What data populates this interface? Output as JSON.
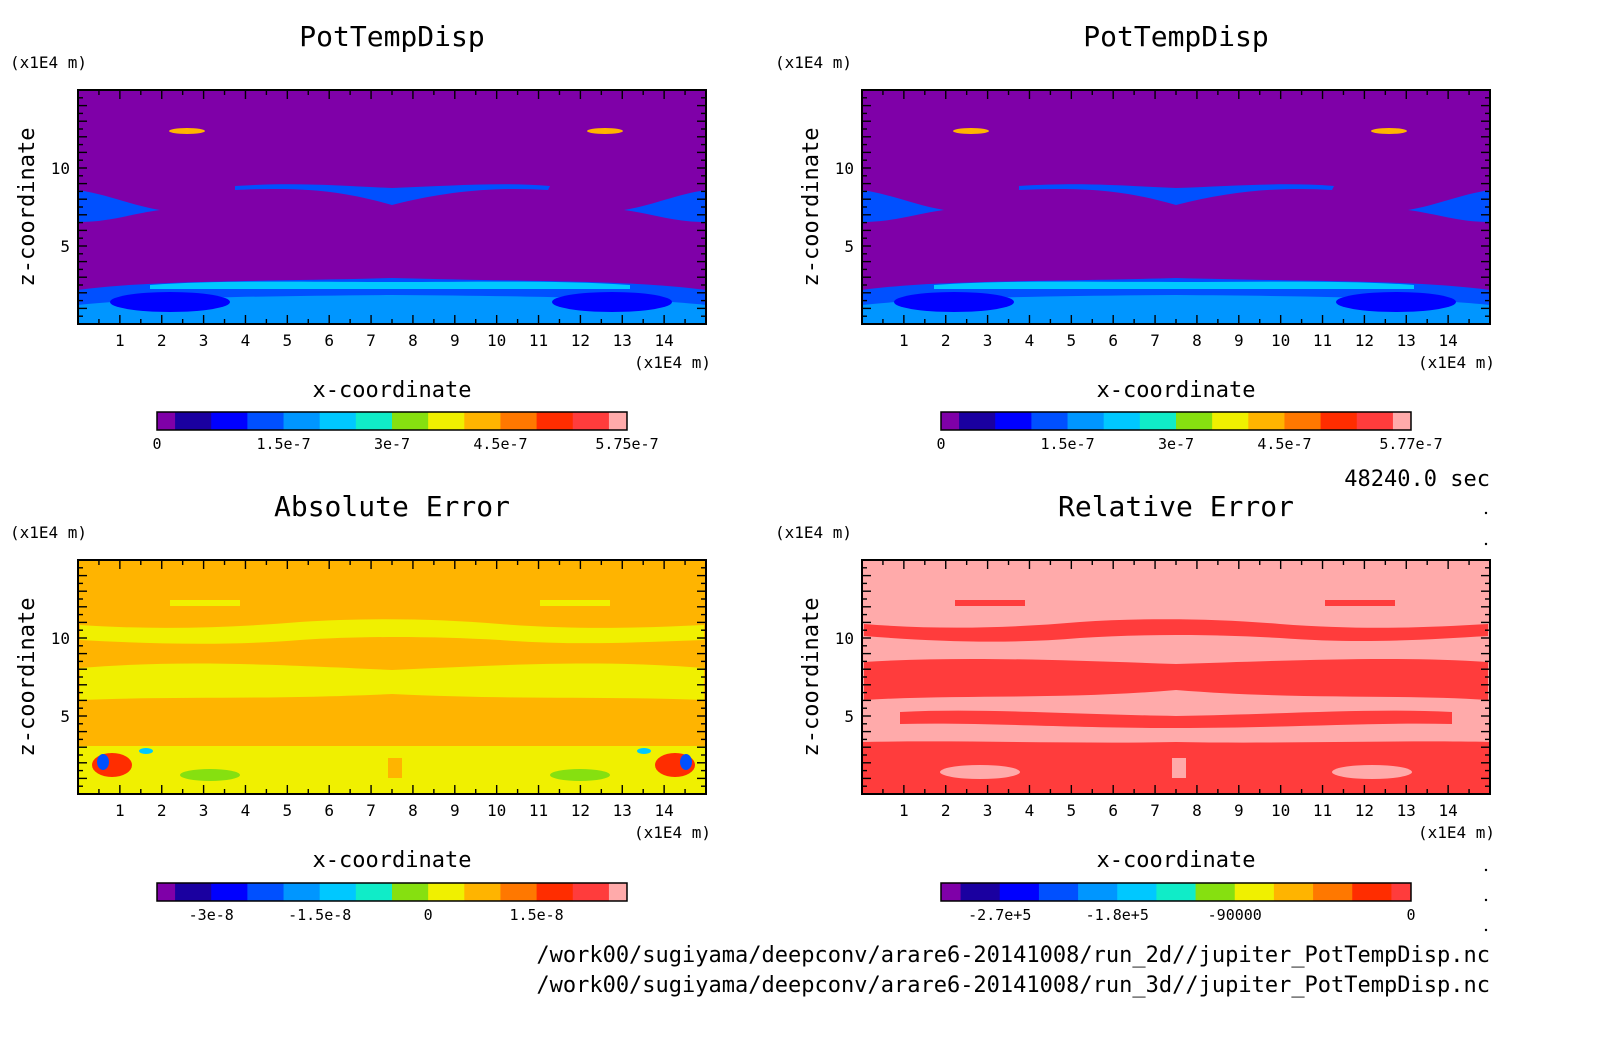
{
  "time_label": "48240.0 sec",
  "files": [
    "/work00/sugiyama/deepconv/arare6-20141008/run_2d//jupiter_PotTempDisp.nc",
    "/work00/sugiyama/deepconv/arare6-20141008/run_3d//jupiter_PotTempDisp.nc"
  ],
  "colors": {
    "palette13": [
      "#7f00a8",
      "#1a00a0",
      "#0000ff",
      "#0050ff",
      "#0096ff",
      "#00c8ff",
      "#10ecc8",
      "#86e010",
      "#f0f000",
      "#ffb400",
      "#ff7800",
      "#ff2d00",
      "#ff3c3c",
      "#ffaaaa"
    ],
    "relpalette": [
      "#7f00a8",
      "#1a00a0",
      "#0000ff",
      "#0050ff",
      "#0096ff",
      "#00c8ff",
      "#10ecc8",
      "#86e010",
      "#f0f000",
      "#ffb400",
      "#ff7800",
      "#ff2d00",
      "#ff3c3c"
    ]
  },
  "chart_data": [
    {
      "type": "heatmap",
      "title": "PotTempDisp",
      "xlabel": "x-coordinate",
      "ylabel": "z-coordinate",
      "x_unit": "(x1E4 m)",
      "y_unit": "(x1E4 m)",
      "xticks": [
        1,
        2,
        3,
        4,
        5,
        6,
        7,
        8,
        9,
        10,
        11,
        12,
        13,
        14
      ],
      "yticks": [
        5,
        10
      ],
      "xlim": [
        0,
        15
      ],
      "ylim": [
        0,
        15
      ],
      "colorbar_labels": [
        "0",
        "1.5e-7",
        "3e-7",
        "4.5e-7",
        "5.75e-7"
      ],
      "colorbar_range": [
        0,
        5.75e-07
      ],
      "dominant_level": "0 (purple)",
      "source_run": "run_2d"
    },
    {
      "type": "heatmap",
      "title": "PotTempDisp",
      "xlabel": "x-coordinate",
      "ylabel": "z-coordinate",
      "x_unit": "(x1E4 m)",
      "y_unit": "(x1E4 m)",
      "xticks": [
        1,
        2,
        3,
        4,
        5,
        6,
        7,
        8,
        9,
        10,
        11,
        12,
        13,
        14
      ],
      "yticks": [
        5,
        10
      ],
      "xlim": [
        0,
        15
      ],
      "ylim": [
        0,
        15
      ],
      "colorbar_labels": [
        "0",
        "1.5e-7",
        "3e-7",
        "4.5e-7",
        "5.77e-7"
      ],
      "colorbar_range": [
        0,
        5.77e-07
      ],
      "dominant_level": "0 (purple)",
      "source_run": "run_3d"
    },
    {
      "type": "heatmap",
      "title": "Absolute Error",
      "xlabel": "x-coordinate",
      "ylabel": "z-coordinate",
      "x_unit": "(x1E4 m)",
      "y_unit": "(x1E4 m)",
      "xticks": [
        1,
        2,
        3,
        4,
        5,
        6,
        7,
        8,
        9,
        10,
        11,
        12,
        13,
        14
      ],
      "yticks": [
        5,
        10
      ],
      "xlim": [
        0,
        15
      ],
      "ylim": [
        0,
        15
      ],
      "colorbar_labels": [
        "-3e-8",
        "-1.5e-8",
        "0",
        "1.5e-8"
      ],
      "dominant_level": "orange (slightly positive)"
    },
    {
      "type": "heatmap",
      "title": "Relative Error",
      "xlabel": "x-coordinate",
      "ylabel": "z-coordinate",
      "x_unit": "(x1E4 m)",
      "y_unit": "(x1E4 m)",
      "xticks": [
        1,
        2,
        3,
        4,
        5,
        6,
        7,
        8,
        9,
        10,
        11,
        12,
        13,
        14
      ],
      "yticks": [
        5,
        10
      ],
      "xlim": [
        0,
        15
      ],
      "ylim": [
        0,
        15
      ],
      "colorbar_labels": [
        "-2.7e+5",
        "-1.8e+5",
        "-90000",
        "0"
      ],
      "dominant_level": "pink (0 and above)"
    }
  ]
}
